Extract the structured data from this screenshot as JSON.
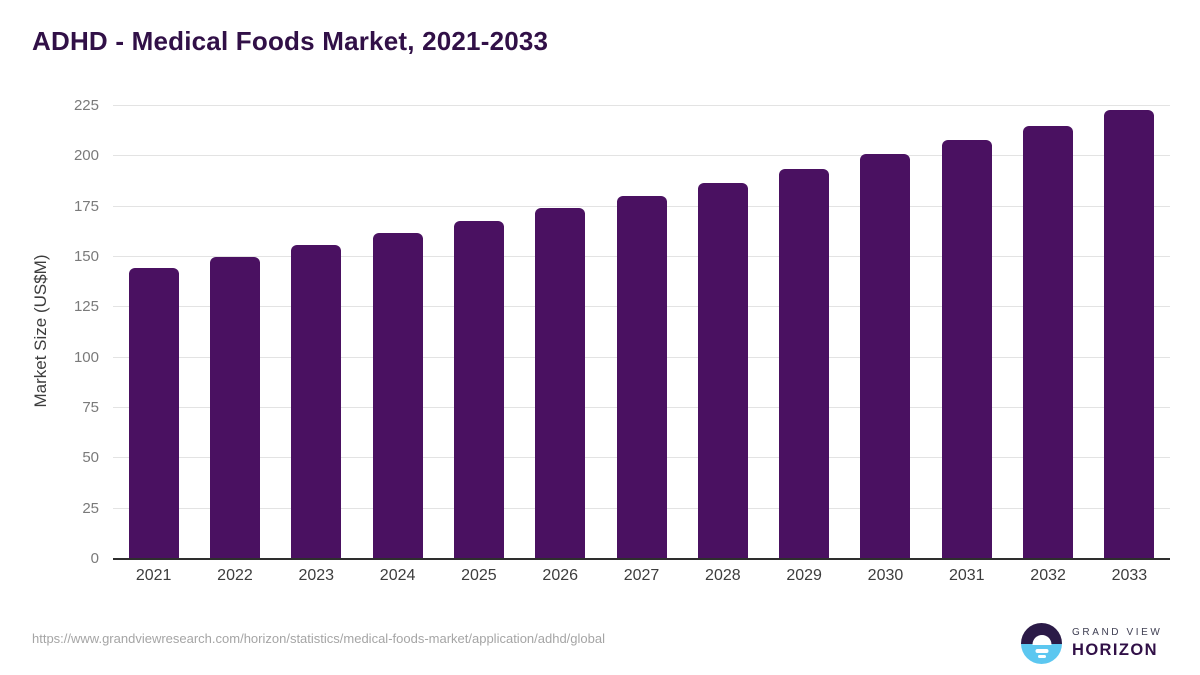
{
  "chart_data": {
    "type": "bar",
    "title": "ADHD - Medical Foods Market, 2021-2033",
    "categories": [
      "2021",
      "2022",
      "2023",
      "2024",
      "2025",
      "2026",
      "2027",
      "2028",
      "2029",
      "2030",
      "2031",
      "2032",
      "2033"
    ],
    "values": [
      144,
      149.5,
      155.5,
      161.5,
      167.5,
      174,
      180,
      186.5,
      193,
      200.5,
      207.5,
      214.5,
      222.5
    ],
    "xlabel": "",
    "ylabel": "Market Size (US$M)",
    "ylim": [
      0,
      225
    ],
    "yticks": [
      0,
      25,
      50,
      75,
      100,
      125,
      150,
      175,
      200,
      225
    ],
    "grid": true,
    "legend_position": "none"
  },
  "footer": {
    "source_url": "https://www.grandviewresearch.com/horizon/statistics/medical-foods-market/application/adhd/global"
  },
  "logo": {
    "line1": "GRAND VIEW",
    "line2": "HORIZON"
  },
  "colors": {
    "bar": "#4a1161",
    "title_text": "#311047",
    "gridline": "#e3e3e3",
    "axis_line": "#2e2e2e",
    "tick_text": "#7a7a7a",
    "label_text": "#3d3d3d",
    "source_text": "#a5a5a5",
    "logo_dark": "#2b1a47",
    "logo_blue": "#5cc7f0"
  }
}
